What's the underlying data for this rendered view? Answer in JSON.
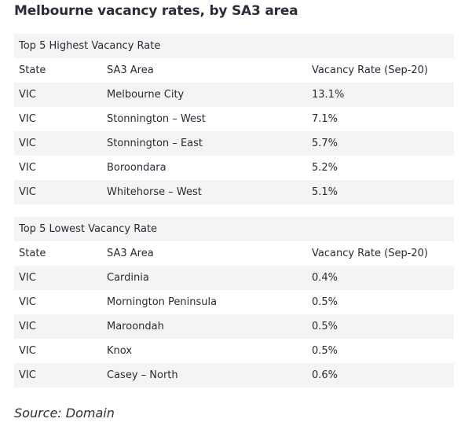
{
  "title": "Melbourne vacancy rates, by SA3 area",
  "highest": {
    "section_title": "Top 5 Highest Vacancy Rate",
    "headers": {
      "state": "State",
      "area": "SA3 Area",
      "rate": "Vacancy Rate (Sep-20)"
    },
    "rows": [
      {
        "state": "VIC",
        "area": "Melbourne City",
        "rate": "13.1%"
      },
      {
        "state": "VIC",
        "area": "Stonnington – West",
        "rate": "7.1%"
      },
      {
        "state": "VIC",
        "area": "Stonnington – East",
        "rate": "5.7%"
      },
      {
        "state": "VIC",
        "area": "Boroondara",
        "rate": "5.2%"
      },
      {
        "state": "VIC",
        "area": "Whitehorse – West",
        "rate": "5.1%"
      }
    ]
  },
  "lowest": {
    "section_title": "Top 5 Lowest Vacancy Rate",
    "headers": {
      "state": "State",
      "area": "SA3 Area",
      "rate": "Vacancy Rate (Sep-20)"
    },
    "rows": [
      {
        "state": "VIC",
        "area": "Cardinia",
        "rate": "0.4%"
      },
      {
        "state": "VIC",
        "area": "Mornington Peninsula",
        "rate": "0.5%"
      },
      {
        "state": "VIC",
        "area": "Maroondah",
        "rate": "0.5%"
      },
      {
        "state": "VIC",
        "area": "Knox",
        "rate": "0.5%"
      },
      {
        "state": "VIC",
        "area": "Casey – North",
        "rate": "0.6%"
      }
    ]
  },
  "source": "Source: Domain"
}
